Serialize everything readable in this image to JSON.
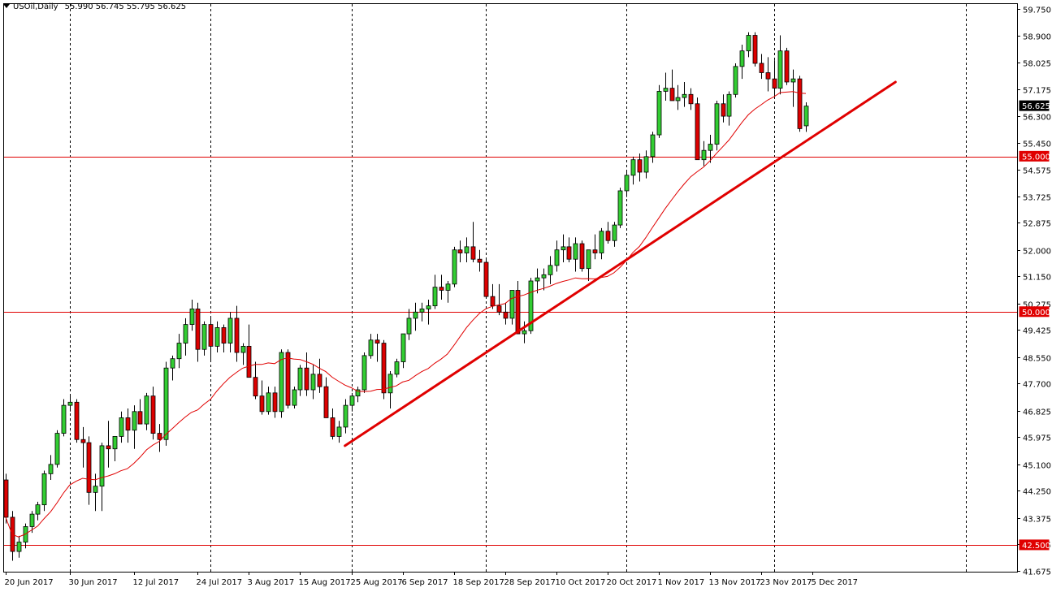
{
  "header": {
    "symbol": "USOil,Daily",
    "ohlc": "55.990 56.745 55.795 56.625"
  },
  "chart_data": {
    "type": "candlestick",
    "symbol": "USOil",
    "timeframe": "Daily",
    "ohlc_current": {
      "open": 55.99,
      "high": 56.745,
      "low": 55.795,
      "close": 56.625
    },
    "current_price_label": "56.625",
    "y_ticks": [
      "59.750",
      "58.900",
      "58.025",
      "57.175",
      "56.300",
      "55.450",
      "54.575",
      "53.725",
      "52.875",
      "52.000",
      "51.150",
      "50.275",
      "49.425",
      "48.550",
      "47.700",
      "46.825",
      "45.975",
      "45.100",
      "44.250",
      "43.375",
      "42.525",
      "41.675"
    ],
    "ylim": [
      41.675,
      59.75
    ],
    "x_ticks": [
      "20 Jun 2017",
      "30 Jun 2017",
      "12 Jul 2017",
      "24 Jul 2017",
      "3 Aug 2017",
      "15 Aug 2017",
      "25 Aug 2017",
      "6 Sep 2017",
      "18 Sep 2017",
      "28 Sep 2017",
      "10 Oct 2017",
      "20 Oct 2017",
      "1 Nov 2017",
      "13 Nov 2017",
      "23 Nov 2017",
      "5 Dec 2017"
    ],
    "horizontal_levels": [
      {
        "value": 55.0,
        "label": "55.000"
      },
      {
        "value": 50.0,
        "label": "50.000"
      },
      {
        "value": 42.5,
        "label": "42.500"
      }
    ],
    "trendline": {
      "start": {
        "date": "29 Aug 2017",
        "price": 45.7
      },
      "end": {
        "date": "22 Dec 2017",
        "price": 57.4
      }
    },
    "period_separators": [
      "30 Jun 2017",
      "1 Aug 2017",
      "1 Sep 2017",
      "2 Oct 2017",
      "1 Nov 2017",
      "1 Dec 2017",
      "1 Jan 2018"
    ],
    "moving_average": {
      "name": "MA",
      "color": "#e00000"
    },
    "candles_ohlc": [
      [
        44.6,
        44.8,
        43.2,
        43.4
      ],
      [
        43.4,
        43.6,
        42.0,
        42.3
      ],
      [
        42.3,
        42.8,
        42.1,
        42.6
      ],
      [
        42.6,
        43.2,
        42.4,
        43.1
      ],
      [
        43.1,
        43.6,
        42.9,
        43.5
      ],
      [
        43.5,
        43.9,
        43.3,
        43.8
      ],
      [
        43.8,
        44.9,
        43.6,
        44.8
      ],
      [
        44.8,
        45.4,
        44.6,
        45.1
      ],
      [
        45.1,
        46.2,
        45.0,
        46.1
      ],
      [
        46.1,
        47.2,
        46.0,
        47.0
      ],
      [
        47.0,
        47.3,
        46.8,
        47.1
      ],
      [
        47.1,
        47.2,
        45.8,
        45.9
      ],
      [
        45.9,
        46.3,
        45.0,
        45.8
      ],
      [
        45.8,
        46.0,
        43.8,
        44.2
      ],
      [
        44.2,
        44.8,
        43.6,
        44.4
      ],
      [
        44.4,
        45.8,
        43.6,
        45.7
      ],
      [
        45.7,
        46.5,
        45.0,
        45.6
      ],
      [
        45.6,
        46.0,
        45.2,
        46.0
      ],
      [
        46.0,
        46.8,
        45.8,
        46.6
      ],
      [
        46.6,
        46.9,
        45.8,
        46.2
      ],
      [
        46.2,
        47.0,
        45.6,
        46.8
      ],
      [
        46.8,
        47.2,
        46.4,
        46.4
      ],
      [
        46.4,
        47.4,
        46.2,
        47.3
      ],
      [
        47.3,
        47.6,
        45.9,
        46.1
      ],
      [
        46.1,
        46.4,
        45.5,
        45.9
      ],
      [
        45.9,
        48.4,
        45.7,
        48.2
      ],
      [
        48.2,
        48.6,
        47.8,
        48.5
      ],
      [
        48.5,
        49.3,
        48.2,
        49.0
      ],
      [
        49.0,
        49.8,
        48.6,
        49.6
      ],
      [
        49.6,
        50.4,
        49.4,
        50.1
      ],
      [
        50.1,
        50.3,
        48.4,
        48.8
      ],
      [
        48.8,
        49.7,
        48.6,
        49.6
      ],
      [
        49.6,
        49.8,
        48.4,
        48.9
      ],
      [
        48.9,
        49.7,
        48.7,
        49.5
      ],
      [
        49.5,
        49.6,
        48.7,
        49.0
      ],
      [
        49.0,
        50.0,
        48.7,
        49.8
      ],
      [
        49.8,
        50.2,
        48.4,
        48.7
      ],
      [
        48.7,
        49.0,
        48.3,
        48.9
      ],
      [
        48.9,
        49.6,
        48.0,
        47.9
      ],
      [
        47.9,
        48.4,
        47.2,
        47.3
      ],
      [
        47.3,
        47.8,
        46.7,
        46.8
      ],
      [
        46.8,
        47.6,
        46.7,
        47.4
      ],
      [
        47.4,
        47.6,
        46.6,
        46.8
      ],
      [
        46.8,
        48.8,
        46.6,
        48.7
      ],
      [
        48.7,
        48.8,
        46.9,
        47.0
      ],
      [
        47.0,
        47.6,
        46.9,
        47.5
      ],
      [
        47.5,
        48.3,
        47.3,
        48.2
      ],
      [
        48.2,
        48.7,
        47.3,
        47.5
      ],
      [
        47.5,
        48.3,
        47.2,
        48.0
      ],
      [
        48.0,
        48.5,
        47.4,
        47.6
      ],
      [
        47.6,
        47.9,
        46.6,
        46.6
      ],
      [
        46.6,
        46.9,
        45.9,
        46.0
      ],
      [
        46.0,
        46.5,
        45.8,
        46.3
      ],
      [
        46.3,
        47.2,
        46.1,
        47.0
      ],
      [
        47.0,
        47.4,
        46.8,
        47.3
      ],
      [
        47.3,
        47.6,
        47.1,
        47.5
      ],
      [
        47.5,
        48.7,
        47.4,
        48.6
      ],
      [
        48.6,
        49.3,
        48.5,
        49.1
      ],
      [
        49.1,
        49.3,
        48.4,
        49.0
      ],
      [
        49.0,
        49.1,
        47.2,
        47.4
      ],
      [
        47.4,
        48.1,
        46.9,
        48.0
      ],
      [
        48.0,
        48.5,
        47.9,
        48.4
      ],
      [
        48.4,
        49.1,
        48.2,
        49.3
      ],
      [
        49.3,
        50.1,
        49.1,
        49.8
      ],
      [
        49.8,
        50.3,
        49.4,
        50.0
      ],
      [
        50.0,
        50.3,
        49.7,
        50.1
      ],
      [
        50.1,
        50.4,
        49.6,
        50.2
      ],
      [
        50.2,
        51.2,
        50.1,
        50.8
      ],
      [
        50.8,
        51.2,
        50.4,
        50.7
      ],
      [
        50.7,
        51.0,
        50.3,
        50.9
      ],
      [
        50.9,
        52.1,
        50.8,
        52.0
      ],
      [
        52.0,
        52.3,
        51.6,
        51.9
      ],
      [
        51.9,
        52.4,
        51.6,
        52.1
      ],
      [
        52.1,
        52.9,
        51.6,
        51.7
      ],
      [
        51.7,
        52.0,
        51.3,
        51.6
      ],
      [
        51.6,
        51.7,
        50.6,
        50.5
      ],
      [
        50.5,
        50.9,
        50.1,
        50.2
      ],
      [
        50.2,
        50.9,
        49.9,
        50.0
      ],
      [
        50.0,
        50.3,
        49.6,
        49.8
      ],
      [
        49.8,
        50.6,
        49.6,
        50.7
      ],
      [
        50.7,
        51.0,
        49.9,
        49.3
      ],
      [
        49.3,
        49.7,
        49.0,
        49.4
      ],
      [
        49.4,
        51.1,
        49.3,
        51.0
      ],
      [
        51.0,
        51.4,
        50.6,
        51.1
      ],
      [
        51.1,
        51.4,
        50.7,
        51.2
      ],
      [
        51.2,
        51.8,
        50.9,
        51.5
      ],
      [
        51.5,
        52.3,
        51.3,
        52.0
      ],
      [
        52.0,
        52.5,
        51.6,
        52.1
      ],
      [
        52.1,
        52.4,
        51.6,
        51.7
      ],
      [
        51.7,
        52.4,
        51.3,
        52.2
      ],
      [
        52.2,
        52.3,
        51.3,
        51.4
      ],
      [
        51.4,
        52.0,
        51.0,
        52.0
      ],
      [
        52.0,
        52.5,
        51.7,
        51.9
      ],
      [
        51.9,
        52.7,
        51.7,
        52.6
      ],
      [
        52.6,
        52.9,
        52.2,
        52.3
      ],
      [
        52.3,
        52.9,
        52.1,
        52.8
      ],
      [
        52.8,
        54.0,
        52.7,
        53.9
      ],
      [
        53.9,
        54.5,
        53.7,
        54.4
      ],
      [
        54.4,
        55.0,
        54.1,
        54.9
      ],
      [
        54.9,
        55.1,
        54.2,
        54.5
      ],
      [
        54.5,
        55.2,
        54.3,
        55.0
      ],
      [
        55.0,
        55.8,
        54.8,
        55.7
      ],
      [
        55.7,
        57.3,
        55.6,
        57.1
      ],
      [
        57.1,
        57.7,
        56.8,
        57.2
      ],
      [
        57.2,
        57.8,
        56.8,
        56.8
      ],
      [
        56.8,
        57.3,
        56.5,
        56.9
      ],
      [
        56.9,
        57.4,
        56.6,
        57.0
      ],
      [
        57.0,
        57.2,
        56.5,
        56.7
      ],
      [
        56.7,
        56.9,
        55.0,
        54.9
      ],
      [
        54.9,
        55.5,
        54.7,
        55.2
      ],
      [
        55.2,
        55.7,
        54.8,
        55.4
      ],
      [
        55.4,
        56.8,
        55.2,
        56.7
      ],
      [
        56.7,
        57.0,
        56.1,
        56.3
      ],
      [
        56.3,
        57.1,
        56.0,
        57.0
      ],
      [
        57.0,
        58.0,
        56.9,
        57.9
      ],
      [
        57.9,
        58.6,
        57.5,
        58.4
      ],
      [
        58.4,
        59.0,
        58.2,
        58.9
      ],
      [
        58.9,
        59.0,
        57.9,
        58.0
      ],
      [
        58.0,
        58.3,
        57.5,
        57.7
      ],
      [
        57.7,
        58.2,
        57.1,
        57.5
      ],
      [
        57.5,
        58.1,
        56.9,
        57.2
      ],
      [
        57.2,
        58.9,
        57.0,
        58.4
      ],
      [
        58.4,
        58.5,
        57.3,
        57.4
      ],
      [
        57.4,
        57.8,
        56.6,
        57.5
      ],
      [
        57.5,
        57.6,
        55.8,
        55.9
      ],
      [
        55.99,
        56.745,
        55.795,
        56.625
      ]
    ]
  }
}
